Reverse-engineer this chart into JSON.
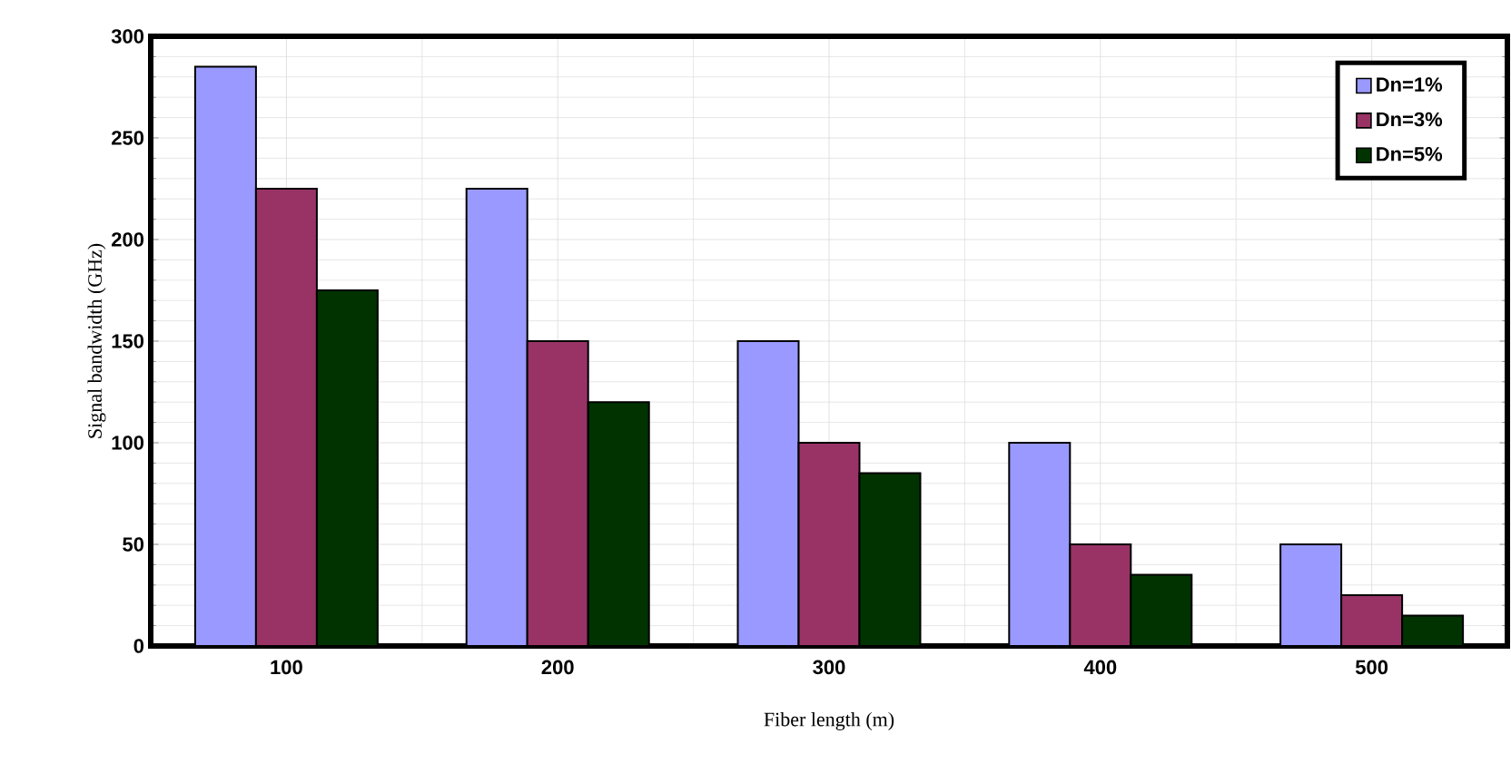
{
  "chart_data": {
    "type": "bar",
    "xlabel": "Fiber length (m)",
    "ylabel": "Signal bandwidth (GHz)",
    "categories": [
      "100",
      "200",
      "300",
      "400",
      "500"
    ],
    "series": [
      {
        "name": "Dn=1%",
        "color": "#9999ff",
        "values": [
          285,
          225,
          150,
          100,
          50
        ]
      },
      {
        "name": "Dn=3%",
        "color": "#993366",
        "values": [
          225,
          150,
          100,
          50,
          25
        ]
      },
      {
        "name": "Dn=5%",
        "color": "#003300",
        "values": [
          175,
          120,
          85,
          35,
          15
        ]
      }
    ],
    "ylim": [
      0,
      300
    ],
    "yticks": [
      0,
      50,
      100,
      150,
      200,
      250,
      300
    ],
    "grid": true,
    "legend": "top right"
  }
}
